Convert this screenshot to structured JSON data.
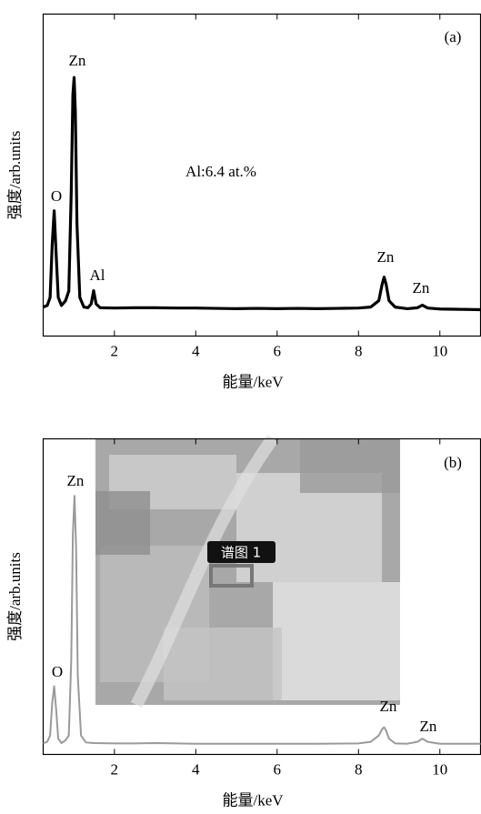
{
  "chart_data": [
    {
      "type": "line",
      "title": "(a)",
      "xlabel": "能量/keV",
      "ylabel": "强度/arb.units",
      "x": [
        0.25,
        0.35,
        0.42,
        0.47,
        0.52,
        0.57,
        0.62,
        0.7,
        0.8,
        0.88,
        0.94,
        0.98,
        1.01,
        1.04,
        1.08,
        1.15,
        1.25,
        1.35,
        1.43,
        1.49,
        1.55,
        1.65,
        2,
        2.5,
        3,
        3.5,
        4,
        4.5,
        5,
        5.5,
        6,
        6.5,
        7,
        7.5,
        8,
        8.3,
        8.5,
        8.58,
        8.63,
        8.68,
        8.75,
        8.9,
        9.2,
        9.45,
        9.57,
        9.7,
        10,
        10.5,
        11
      ],
      "values": [
        9,
        9.5,
        12,
        28,
        38.9,
        25,
        12,
        9.5,
        11,
        14,
        45,
        75,
        80.3,
        70,
        35,
        12,
        9,
        8.8,
        10,
        14.1,
        10,
        8.8,
        8.7,
        8.8,
        8.8,
        8.7,
        8.7,
        8.6,
        8.5,
        8.6,
        8.5,
        8.6,
        8.5,
        8.6,
        8.7,
        9,
        11,
        16,
        18.3,
        16,
        11,
        9,
        8.5,
        8.8,
        9.6,
        8.7,
        8.4,
        8.3,
        8.2
      ],
      "color": "#000000",
      "xlim": [
        0.25,
        11
      ],
      "ylim": [
        0,
        100
      ],
      "xticks": [
        2,
        4,
        6,
        8,
        10
      ],
      "annotations": [
        "Zn",
        "O",
        "Al",
        "Al:6.4 at.%",
        "Zn",
        "Zn"
      ]
    },
    {
      "type": "line",
      "title": "(b)",
      "xlabel": "能量/keV",
      "ylabel": "强度/arb.units",
      "x": [
        0.25,
        0.35,
        0.42,
        0.47,
        0.52,
        0.57,
        0.62,
        0.7,
        0.8,
        0.88,
        0.94,
        0.98,
        1.02,
        1.06,
        1.1,
        1.18,
        1.3,
        1.5,
        2,
        2.5,
        3,
        4,
        5,
        6,
        7,
        8,
        8.3,
        8.5,
        8.58,
        8.63,
        8.68,
        8.75,
        8.9,
        9.2,
        9.45,
        9.57,
        9.7,
        10,
        10.5,
        11
      ],
      "values": [
        3.5,
        4,
        6,
        16,
        21.6,
        14,
        5,
        3.6,
        4.5,
        6,
        30,
        70,
        81.9,
        65,
        25,
        6,
        3.8,
        3.6,
        3.5,
        3.5,
        3.6,
        3.4,
        3.4,
        3.4,
        3.4,
        3.5,
        4,
        6,
        8,
        8.6,
        7.5,
        5,
        3.5,
        3.4,
        4,
        5,
        4,
        3.4,
        3.4,
        3.4
      ],
      "color": "#9a9a9a",
      "xlim": [
        0.25,
        11
      ],
      "ylim": [
        0,
        100
      ],
      "xticks": [
        2,
        4,
        6,
        8,
        10
      ],
      "annotations": [
        "Zn",
        "O",
        "Zn",
        "Zn"
      ],
      "inset_label": "谱图 1"
    }
  ]
}
